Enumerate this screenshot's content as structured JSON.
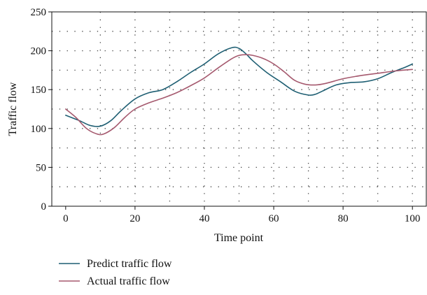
{
  "chart_data": {
    "type": "line",
    "xlabel": "Time point",
    "ylabel": "Traffic flow",
    "xlim": [
      -4,
      104
    ],
    "ylim": [
      0,
      250
    ],
    "xticks": [
      0,
      20,
      40,
      60,
      80,
      100
    ],
    "yticks": [
      0,
      50,
      100,
      150,
      200,
      250
    ],
    "grid": true,
    "legend_position": "bottom-left",
    "series": [
      {
        "name": "Predict traffic flow",
        "color": "#1f5f73",
        "x": [
          0,
          4,
          7,
          10,
          13,
          16,
          20,
          24,
          28,
          32,
          36,
          40,
          44,
          48,
          50,
          52,
          54,
          58,
          62,
          66,
          70,
          72,
          74,
          78,
          82,
          86,
          90,
          94,
          98,
          100
        ],
        "y": [
          117,
          110,
          104,
          103,
          110,
          123,
          138,
          146,
          150,
          160,
          172,
          183,
          196,
          204,
          203,
          196,
          187,
          172,
          160,
          148,
          143,
          144,
          148,
          156,
          159,
          160,
          164,
          172,
          179,
          183
        ]
      },
      {
        "name": "Actual traffic flow",
        "color": "#a5596e",
        "x": [
          0,
          3,
          6,
          9,
          11,
          14,
          17,
          20,
          24,
          28,
          32,
          36,
          40,
          44,
          48,
          50,
          52,
          54,
          57,
          60,
          63,
          66,
          69,
          72,
          75,
          80,
          85,
          90,
          95,
          100
        ],
        "y": [
          125,
          114,
          100,
          93,
          93,
          101,
          114,
          125,
          133,
          139,
          146,
          155,
          165,
          178,
          190,
          194,
          195,
          194,
          190,
          183,
          173,
          162,
          157,
          156,
          158,
          164,
          168,
          171,
          174,
          176
        ]
      }
    ]
  }
}
